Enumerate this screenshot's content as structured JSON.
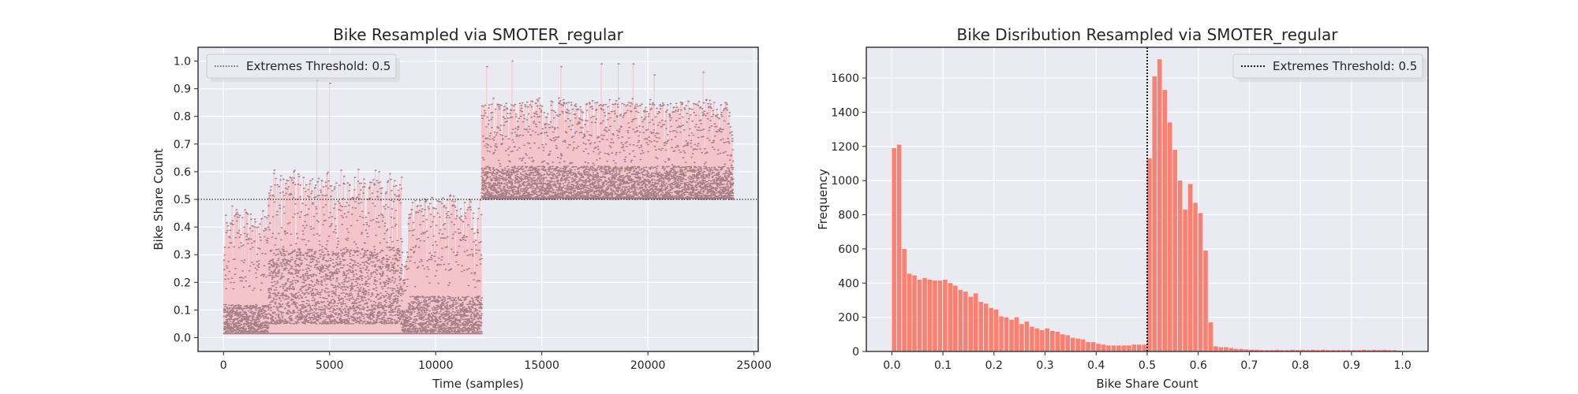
{
  "chart_data": [
    {
      "type": "scatter",
      "title": "Bike Resampled via SMOTER_regular",
      "xlabel": "Time (samples)",
      "ylabel": "Bike Share Count",
      "xlim": [
        -1200,
        25200
      ],
      "ylim": [
        -0.05,
        1.05
      ],
      "xticks": [
        0,
        5000,
        10000,
        15000,
        20000,
        25000
      ],
      "yticks": [
        0.0,
        0.1,
        0.2,
        0.3,
        0.4,
        0.5,
        0.6,
        0.7,
        0.8,
        0.9,
        1.0
      ],
      "grid": true,
      "legend_position": "top-left",
      "threshold": {
        "label": "Extremes Threshold: 0.5",
        "value": 0.5,
        "style": "dotted",
        "color": "#262626"
      },
      "series": [
        {
          "kind": "vertical-lines-with-markers",
          "line_color": "#f4c2c8",
          "marker_color": "#8c6870",
          "segments": [
            {
              "x_range": [
                0,
                2100
              ],
              "typical_max": 0.46,
              "base": 0.01,
              "dense_band": [
                0.02,
                0.12
              ]
            },
            {
              "x_range": [
                2100,
                8400
              ],
              "typical_max": 0.58,
              "base": 0.01,
              "dense_band": [
                0.05,
                0.32
              ]
            },
            {
              "x_range": [
                8400,
                8700
              ],
              "typical_max": 0.3,
              "base": 0.01,
              "dense_band": [
                0.02,
                0.1
              ]
            },
            {
              "x_range": [
                8700,
                12150
              ],
              "typical_max": 0.5,
              "base": 0.01,
              "dense_band": [
                0.02,
                0.15
              ]
            },
            {
              "x_range": [
                12150,
                24000
              ],
              "typical_max": 0.85,
              "base": 0.5,
              "dense_band": [
                0.5,
                0.62
              ]
            }
          ],
          "peaks": [
            {
              "x": 4400,
              "y": 0.93
            },
            {
              "x": 5000,
              "y": 0.92
            },
            {
              "x": 3300,
              "y": 0.6
            },
            {
              "x": 12400,
              "y": 0.98
            },
            {
              "x": 13600,
              "y": 1.0
            },
            {
              "x": 15900,
              "y": 0.98
            },
            {
              "x": 17800,
              "y": 0.99
            },
            {
              "x": 18600,
              "y": 0.99
            },
            {
              "x": 19300,
              "y": 0.99
            },
            {
              "x": 20300,
              "y": 0.95
            },
            {
              "x": 22600,
              "y": 0.96
            }
          ]
        }
      ]
    },
    {
      "type": "bar",
      "title": "Bike Disribution Resampled via SMOTER_regular",
      "xlabel": "Bike Share Count",
      "ylabel": "Frequency",
      "xlim": [
        -0.05,
        1.05
      ],
      "ylim": [
        0,
        1780
      ],
      "xticks": [
        0.0,
        0.1,
        0.2,
        0.3,
        0.4,
        0.5,
        0.6,
        0.7,
        0.8,
        0.9,
        1.0
      ],
      "yticks": [
        0,
        200,
        400,
        600,
        800,
        1000,
        1200,
        1400,
        1600
      ],
      "grid": true,
      "legend_position": "top-right",
      "bin_width": 0.01,
      "bar_color": "#fa8072",
      "threshold": {
        "label": "Extremes Threshold: 0.5",
        "value": 0.5,
        "style": "dotted",
        "color": "#000000"
      },
      "bin_starts": [
        0.0,
        0.01,
        0.02,
        0.03,
        0.04,
        0.05,
        0.06,
        0.07,
        0.08,
        0.09,
        0.1,
        0.11,
        0.12,
        0.13,
        0.14,
        0.15,
        0.16,
        0.17,
        0.18,
        0.19,
        0.2,
        0.21,
        0.22,
        0.23,
        0.24,
        0.25,
        0.26,
        0.27,
        0.28,
        0.29,
        0.3,
        0.31,
        0.32,
        0.33,
        0.34,
        0.35,
        0.36,
        0.37,
        0.38,
        0.39,
        0.4,
        0.41,
        0.42,
        0.43,
        0.44,
        0.45,
        0.46,
        0.47,
        0.48,
        0.49,
        0.5,
        0.51,
        0.52,
        0.53,
        0.54,
        0.55,
        0.56,
        0.57,
        0.58,
        0.59,
        0.6,
        0.61,
        0.62,
        0.63,
        0.64,
        0.65,
        0.66,
        0.67,
        0.68,
        0.69,
        0.7,
        0.71,
        0.72,
        0.73,
        0.74,
        0.75,
        0.76,
        0.77,
        0.78,
        0.79,
        0.8,
        0.81,
        0.82,
        0.83,
        0.84,
        0.85,
        0.86,
        0.87,
        0.88,
        0.89,
        0.9,
        0.91,
        0.92,
        0.93,
        0.94,
        0.95,
        0.96,
        0.97,
        0.98,
        0.99
      ],
      "values": [
        1190,
        1210,
        600,
        455,
        445,
        420,
        430,
        420,
        415,
        415,
        420,
        400,
        385,
        360,
        350,
        320,
        340,
        290,
        280,
        255,
        245,
        205,
        200,
        185,
        200,
        160,
        175,
        145,
        135,
        125,
        135,
        120,
        115,
        100,
        95,
        80,
        75,
        70,
        55,
        55,
        45,
        40,
        35,
        35,
        35,
        35,
        35,
        40,
        40,
        40,
        1130,
        1610,
        1710,
        1530,
        1340,
        1180,
        1000,
        830,
        980,
        870,
        810,
        590,
        170,
        30,
        25,
        25,
        20,
        15,
        15,
        12,
        10,
        10,
        8,
        8,
        8,
        10,
        8,
        8,
        10,
        8,
        10,
        8,
        10,
        8,
        10,
        8,
        8,
        8,
        8,
        8,
        8,
        8,
        10,
        8,
        10,
        8,
        10,
        8,
        8,
        5
      ]
    }
  ]
}
